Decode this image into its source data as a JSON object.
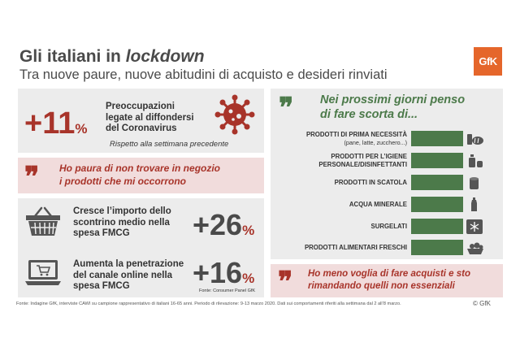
{
  "header": {
    "title_main": "Gli italiani in ",
    "title_italic": "lockdown",
    "subtitle": "Tra nuove paure, nuove abitudini di acquisto e desideri rinviati",
    "logo": "GfK"
  },
  "left": {
    "stat1": {
      "value": "+11",
      "unit": "%",
      "line1": "Preoccupazioni",
      "line2": "legate al diffondersi",
      "line3": "del Coronavirus",
      "note": "Rispetto alla settimana precedente",
      "icon": "virus-icon"
    },
    "quote1": {
      "line1": "Ho paura di non trovare in negozio",
      "line2": "i prodotti che mi occorrono"
    },
    "stat2": {
      "line1": "Cresce l’importo dello",
      "line2": "scontrino medio nella",
      "line3": "spesa FMCG",
      "value": "+26",
      "unit": "%",
      "icon": "shopping-basket-icon"
    },
    "stat3": {
      "line1": "Aumenta la penetrazione",
      "line2": "del canale online nella",
      "line3": "spesa FMCG",
      "value": "+16",
      "unit": "%",
      "source": "Fonte: Consumer Panel GfK",
      "icon": "laptop-cart-icon"
    }
  },
  "right": {
    "quote_line1": "Nei prossimi giorni penso",
    "quote_line2": "di fare scorta di...",
    "quote2": {
      "line1": "Ho meno voglia di fare acquisti e sto",
      "line2": "rimandando quelli non essenziali"
    }
  },
  "chart_data": {
    "type": "bar",
    "categories": [
      {
        "label": "PRODOTTI DI PRIMA NECESSITÀ",
        "sub": "(pane, latte, zucchero...)",
        "icon": "bread-milk-icon"
      },
      {
        "label": "PRODOTTI PER L’IGIENE",
        "label2": "PERSONALE/DISINFETTANTI",
        "icon": "soap-icon"
      },
      {
        "label": "PRODOTTI IN SCATOLA",
        "icon": "can-icon"
      },
      {
        "label": "ACQUA MINERALE",
        "icon": "bottle-icon"
      },
      {
        "label": "SURGELATI",
        "icon": "snowflake-icon"
      },
      {
        "label": "PRODOTTI ALIMENTARI FRESCHI",
        "icon": "fresh-food-icon"
      }
    ],
    "values": [
      1,
      1,
      1,
      1,
      1,
      1
    ],
    "bar_color": "#4c7a4a"
  },
  "footer": {
    "text": "Fonte: Indagine GfK, interviste CAWI su campione rappresentativo di italiani 16-65 anni. Periodo di rilevazione: 9-13 marzo 2020. Dati sui comportamenti riferiti alla settimana dal 2 all’8 marzo.",
    "copyright": "© GfK"
  },
  "colors": {
    "accent_red": "#a8342a",
    "green": "#4c7a4a",
    "orange": "#e5662b",
    "panel": "#ececec",
    "pink": "#f1dcdc"
  }
}
